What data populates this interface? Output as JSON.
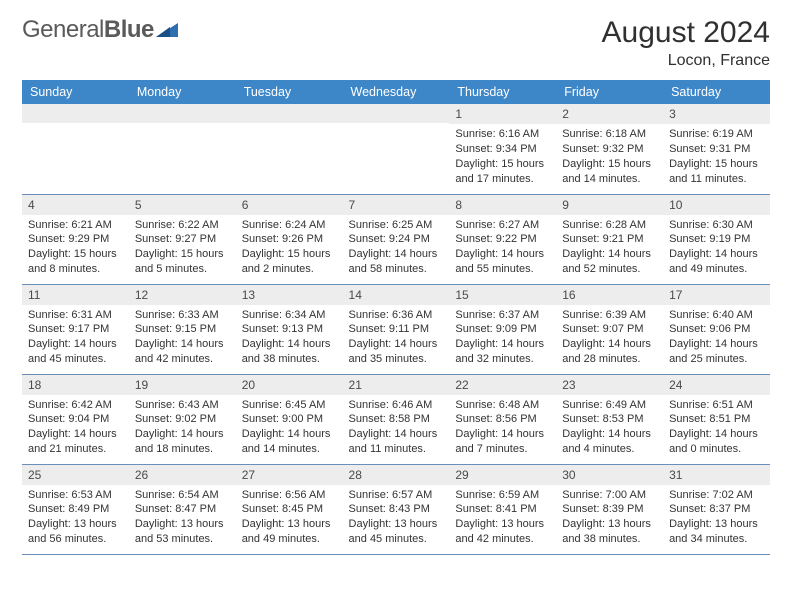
{
  "brand": {
    "part1": "General",
    "part2": "Blue"
  },
  "title": "August 2024",
  "location": "Locon, France",
  "header_bg": "#3d87c9",
  "daynum_bg": "#ededed",
  "border_color": "#6a8fb8",
  "weekdays": [
    "Sunday",
    "Monday",
    "Tuesday",
    "Wednesday",
    "Thursday",
    "Friday",
    "Saturday"
  ],
  "rows": [
    [
      null,
      null,
      null,
      null,
      {
        "n": "1",
        "sr": "6:16 AM",
        "ss": "9:34 PM",
        "dl": "15 hours and 17 minutes."
      },
      {
        "n": "2",
        "sr": "6:18 AM",
        "ss": "9:32 PM",
        "dl": "15 hours and 14 minutes."
      },
      {
        "n": "3",
        "sr": "6:19 AM",
        "ss": "9:31 PM",
        "dl": "15 hours and 11 minutes."
      }
    ],
    [
      {
        "n": "4",
        "sr": "6:21 AM",
        "ss": "9:29 PM",
        "dl": "15 hours and 8 minutes."
      },
      {
        "n": "5",
        "sr": "6:22 AM",
        "ss": "9:27 PM",
        "dl": "15 hours and 5 minutes."
      },
      {
        "n": "6",
        "sr": "6:24 AM",
        "ss": "9:26 PM",
        "dl": "15 hours and 2 minutes."
      },
      {
        "n": "7",
        "sr": "6:25 AM",
        "ss": "9:24 PM",
        "dl": "14 hours and 58 minutes."
      },
      {
        "n": "8",
        "sr": "6:27 AM",
        "ss": "9:22 PM",
        "dl": "14 hours and 55 minutes."
      },
      {
        "n": "9",
        "sr": "6:28 AM",
        "ss": "9:21 PM",
        "dl": "14 hours and 52 minutes."
      },
      {
        "n": "10",
        "sr": "6:30 AM",
        "ss": "9:19 PM",
        "dl": "14 hours and 49 minutes."
      }
    ],
    [
      {
        "n": "11",
        "sr": "6:31 AM",
        "ss": "9:17 PM",
        "dl": "14 hours and 45 minutes."
      },
      {
        "n": "12",
        "sr": "6:33 AM",
        "ss": "9:15 PM",
        "dl": "14 hours and 42 minutes."
      },
      {
        "n": "13",
        "sr": "6:34 AM",
        "ss": "9:13 PM",
        "dl": "14 hours and 38 minutes."
      },
      {
        "n": "14",
        "sr": "6:36 AM",
        "ss": "9:11 PM",
        "dl": "14 hours and 35 minutes."
      },
      {
        "n": "15",
        "sr": "6:37 AM",
        "ss": "9:09 PM",
        "dl": "14 hours and 32 minutes."
      },
      {
        "n": "16",
        "sr": "6:39 AM",
        "ss": "9:07 PM",
        "dl": "14 hours and 28 minutes."
      },
      {
        "n": "17",
        "sr": "6:40 AM",
        "ss": "9:06 PM",
        "dl": "14 hours and 25 minutes."
      }
    ],
    [
      {
        "n": "18",
        "sr": "6:42 AM",
        "ss": "9:04 PM",
        "dl": "14 hours and 21 minutes."
      },
      {
        "n": "19",
        "sr": "6:43 AM",
        "ss": "9:02 PM",
        "dl": "14 hours and 18 minutes."
      },
      {
        "n": "20",
        "sr": "6:45 AM",
        "ss": "9:00 PM",
        "dl": "14 hours and 14 minutes."
      },
      {
        "n": "21",
        "sr": "6:46 AM",
        "ss": "8:58 PM",
        "dl": "14 hours and 11 minutes."
      },
      {
        "n": "22",
        "sr": "6:48 AM",
        "ss": "8:56 PM",
        "dl": "14 hours and 7 minutes."
      },
      {
        "n": "23",
        "sr": "6:49 AM",
        "ss": "8:53 PM",
        "dl": "14 hours and 4 minutes."
      },
      {
        "n": "24",
        "sr": "6:51 AM",
        "ss": "8:51 PM",
        "dl": "14 hours and 0 minutes."
      }
    ],
    [
      {
        "n": "25",
        "sr": "6:53 AM",
        "ss": "8:49 PM",
        "dl": "13 hours and 56 minutes."
      },
      {
        "n": "26",
        "sr": "6:54 AM",
        "ss": "8:47 PM",
        "dl": "13 hours and 53 minutes."
      },
      {
        "n": "27",
        "sr": "6:56 AM",
        "ss": "8:45 PM",
        "dl": "13 hours and 49 minutes."
      },
      {
        "n": "28",
        "sr": "6:57 AM",
        "ss": "8:43 PM",
        "dl": "13 hours and 45 minutes."
      },
      {
        "n": "29",
        "sr": "6:59 AM",
        "ss": "8:41 PM",
        "dl": "13 hours and 42 minutes."
      },
      {
        "n": "30",
        "sr": "7:00 AM",
        "ss": "8:39 PM",
        "dl": "13 hours and 38 minutes."
      },
      {
        "n": "31",
        "sr": "7:02 AM",
        "ss": "8:37 PM",
        "dl": "13 hours and 34 minutes."
      }
    ]
  ],
  "labels": {
    "sunrise": "Sunrise:",
    "sunset": "Sunset:",
    "daylight": "Daylight:"
  }
}
